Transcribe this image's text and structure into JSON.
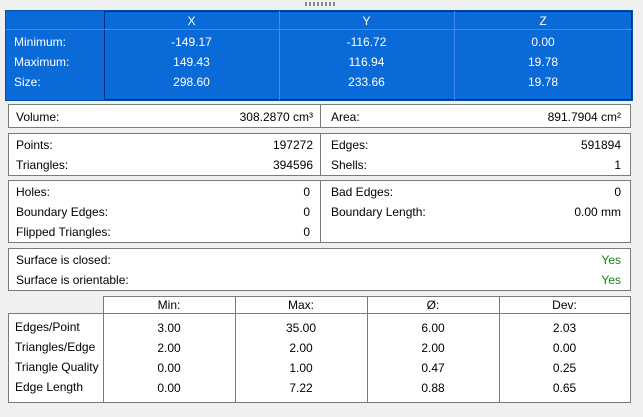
{
  "bounds": {
    "columns": [
      "X",
      "Y",
      "Z"
    ],
    "rows": [
      {
        "label": "Minimum:",
        "values": [
          "-149.17",
          "-116.72",
          "0.00"
        ]
      },
      {
        "label": "Maximum:",
        "values": [
          "149.43",
          "116.94",
          "19.78"
        ]
      },
      {
        "label": "Size:",
        "values": [
          "298.60",
          "233.66",
          "19.78"
        ]
      }
    ]
  },
  "measures": {
    "volume_label": "Volume:",
    "volume_value": "308.2870 cm³",
    "area_label": "Area:",
    "area_value": "891.7904 cm²"
  },
  "counts": {
    "points_label": "Points:",
    "points_value": "197272",
    "triangles_label": "Triangles:",
    "triangles_value": "394596",
    "edges_label": "Edges:",
    "edges_value": "591894",
    "shells_label": "Shells:",
    "shells_value": "1"
  },
  "defects": {
    "holes_label": "Holes:",
    "holes_value": "0",
    "boundary_edges_label": "Boundary Edges:",
    "boundary_edges_value": "0",
    "flipped_label": "Flipped Triangles:",
    "flipped_value": "0",
    "bad_edges_label": "Bad Edges:",
    "bad_edges_value": "0",
    "boundary_length_label": "Boundary Length:",
    "boundary_length_value": "0.00 mm"
  },
  "surface": {
    "closed_label": "Surface is closed:",
    "closed_value": "Yes",
    "orientable_label": "Surface is orientable:",
    "orientable_value": "Yes",
    "status_color": "#1a7f1a"
  },
  "stats": {
    "columns": [
      "Min:",
      "Max:",
      "Ø:",
      "Dev:"
    ],
    "rows": [
      {
        "label": "Edges/Point",
        "values": [
          "3.00",
          "35.00",
          "6.00",
          "2.03"
        ]
      },
      {
        "label": "Triangles/Edge",
        "values": [
          "2.00",
          "2.00",
          "2.00",
          "0.00"
        ]
      },
      {
        "label": "Triangle Quality",
        "values": [
          "0.00",
          "1.00",
          "0.47",
          "0.25"
        ]
      },
      {
        "label": "Edge Length",
        "values": [
          "0.00",
          "7.22",
          "0.88",
          "0.65"
        ]
      }
    ]
  }
}
